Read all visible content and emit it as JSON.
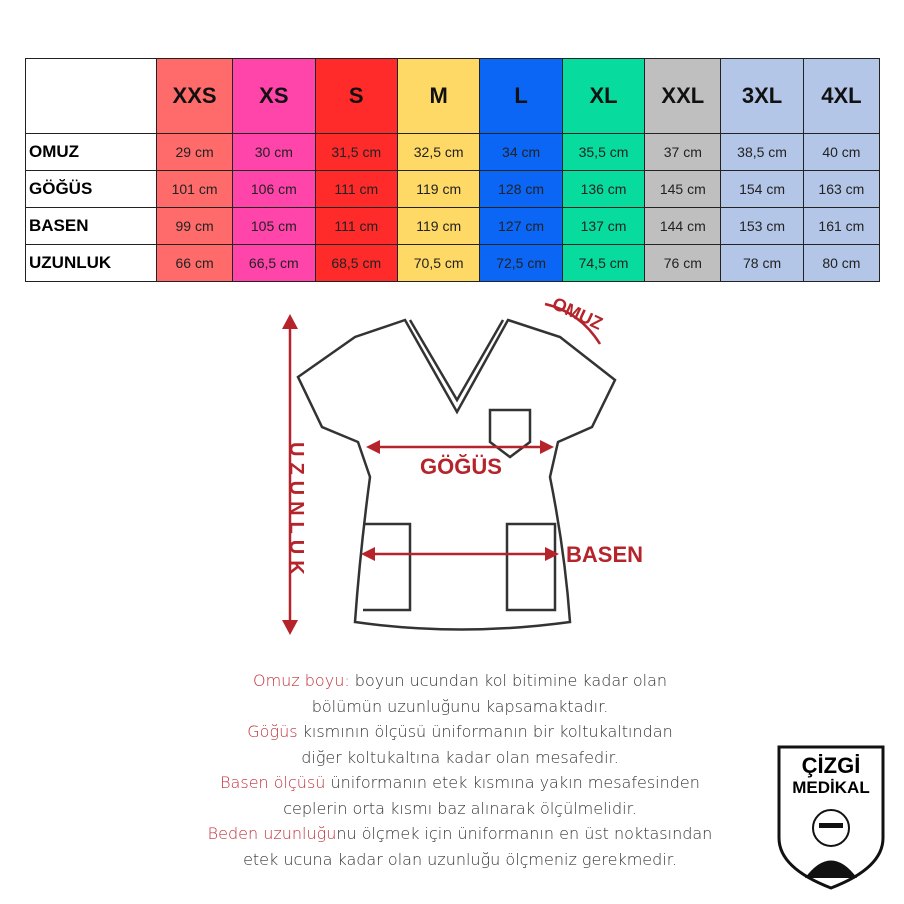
{
  "table": {
    "sizes": [
      {
        "label": "XXS",
        "color": "#ff6b6b"
      },
      {
        "label": "XS",
        "color": "#ff44aa"
      },
      {
        "label": "S",
        "color": "#ff2b2b"
      },
      {
        "label": "M",
        "color": "#ffd966"
      },
      {
        "label": "L",
        "color": "#0b66f5"
      },
      {
        "label": "XL",
        "color": "#07dc9e"
      },
      {
        "label": "XXL",
        "color": "#bfbfbf"
      },
      {
        "label": "3XL",
        "color": "#b4c6e7"
      },
      {
        "label": "4XL",
        "color": "#b4c6e7"
      }
    ],
    "rows": [
      {
        "label": "OMUZ",
        "values": [
          "29 cm",
          "30 cm",
          "31,5 cm",
          "32,5 cm",
          "34 cm",
          "35,5 cm",
          "37 cm",
          "38,5 cm",
          "40 cm"
        ]
      },
      {
        "label": "GÖĞÜS",
        "values": [
          "101 cm",
          "106 cm",
          "111 cm",
          "119 cm",
          "128 cm",
          "136 cm",
          "145 cm",
          "154 cm",
          "163 cm"
        ]
      },
      {
        "label": "BASEN",
        "values": [
          "99 cm",
          "105 cm",
          "111 cm",
          "119 cm",
          "127 cm",
          "137 cm",
          "144 cm",
          "153 cm",
          "161 cm"
        ]
      },
      {
        "label": "UZUNLUK",
        "values": [
          "66 cm",
          "66,5 cm",
          "68,5 cm",
          "70,5 cm",
          "72,5 cm",
          "74,5 cm",
          "76 cm",
          "78 cm",
          "80 cm"
        ]
      }
    ]
  },
  "diagram": {
    "omuz": "OMUZ",
    "gogus": "GÖĞÜS",
    "basen": "BASEN",
    "uzunluk": "UZUNLUK",
    "accent": "#b5232b"
  },
  "desc": {
    "l1a": "Omuz boyu:",
    "l1b": " boyun ucundan kol bitimine kadar olan",
    "l2": "bölümün uzunluğunu kapsamaktadır.",
    "l3a": "Göğüs",
    "l3b": " kısmının ölçüsü üniformanın bir koltukaltından",
    "l4": "diğer koltukaltına kadar olan mesafedir.",
    "l5a": "Basen ölçüsü",
    "l5b": " üniformanın etek kısmına yakın mesafesinden",
    "l6": "ceplerin orta kısmı baz alınarak ölçülmelidir.",
    "l7a": "Beden uzunluğu",
    "l7b": "nu ölçmek için üniformanın en üst noktasından",
    "l8": "etek ucuna kadar olan uzunluğu ölçmeniz gerekmedir."
  },
  "logo": {
    "line1": "ÇİZGİ",
    "line2": "MEDİKAL"
  }
}
